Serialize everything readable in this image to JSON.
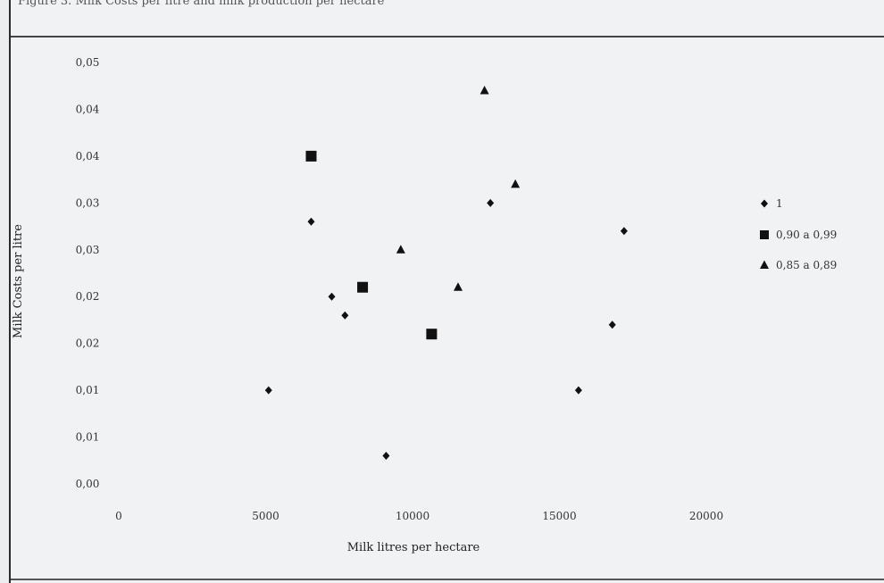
{
  "page": {
    "caption": "Figure 3. Milk Costs per litre and milk production per hectare"
  },
  "chart_data": {
    "type": "scatter",
    "title": "",
    "xlabel": "Milk litres per hectare",
    "ylabel": "Milk Costs per litre",
    "xlim": [
      0,
      22500
    ],
    "ylim": [
      0.0,
      0.05
    ],
    "x_ticks": [
      "0",
      "5000",
      "10000",
      "15000",
      "20000"
    ],
    "x_tick_values": [
      0,
      5000,
      10000,
      15000,
      20000
    ],
    "y_ticks": [
      "0,00",
      "0,01",
      "0,01",
      "0,02",
      "0,02",
      "0,03",
      "0,03",
      "0,04",
      "0,04",
      "0,05"
    ],
    "y_tick_values": [
      0.0,
      0.005,
      0.01,
      0.015,
      0.02,
      0.025,
      0.03,
      0.035,
      0.04,
      0.045
    ],
    "grid": false,
    "legend_position": "right",
    "series": [
      {
        "name": "1",
        "marker": "diamond",
        "points": [
          {
            "x": 5100,
            "y": 0.01
          },
          {
            "x": 6550,
            "y": 0.028
          },
          {
            "x": 7250,
            "y": 0.02
          },
          {
            "x": 7700,
            "y": 0.018
          },
          {
            "x": 9100,
            "y": 0.003
          },
          {
            "x": 12650,
            "y": 0.03
          },
          {
            "x": 15650,
            "y": 0.01
          },
          {
            "x": 16800,
            "y": 0.017
          },
          {
            "x": 17200,
            "y": 0.027
          }
        ]
      },
      {
        "name": "0,90 a 0,99",
        "marker": "square",
        "points": [
          {
            "x": 6550,
            "y": 0.035
          },
          {
            "x": 8300,
            "y": 0.021
          },
          {
            "x": 10650,
            "y": 0.016
          }
        ]
      },
      {
        "name": "0,85 a 0,89",
        "marker": "triangle",
        "points": [
          {
            "x": 9600,
            "y": 0.025
          },
          {
            "x": 11550,
            "y": 0.021
          },
          {
            "x": 12450,
            "y": 0.042
          },
          {
            "x": 13500,
            "y": 0.032
          }
        ]
      }
    ]
  }
}
